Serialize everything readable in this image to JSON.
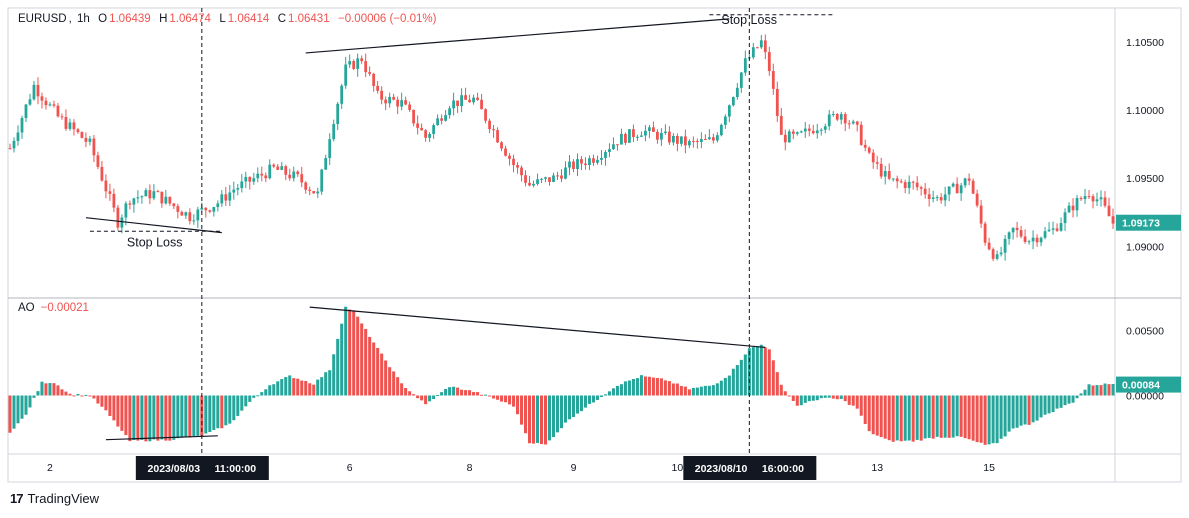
{
  "legend": {
    "symbol": "EURUSD",
    "timeframe": "1h",
    "open_label": "O",
    "open": "1.06439",
    "high_label": "H",
    "high": "1.06474",
    "low_label": "L",
    "low": "1.06414",
    "close_label": "C",
    "close": "1.06431",
    "change": "−0.00006 (−0.01%)"
  },
  "ao_legend": {
    "name": "AO",
    "value": "−0.00021"
  },
  "branding": {
    "logo_mark": "17",
    "name": "TradingView"
  },
  "annotations": {
    "stop_loss_left": "Stop Loss",
    "stop_loss_right": "Stop Loss"
  },
  "colors": {
    "up": "#26a69a",
    "down": "#ef5350",
    "ao_up": "#26a69a",
    "ao_down": "#ef5350",
    "text": "#131722",
    "grid": "#d1d4dc"
  },
  "chart_data": [
    {
      "type": "candlestick",
      "title": "EURUSD, 1h",
      "ylim": [
        1.0862,
        1.1075
      ],
      "y_ticks": [
        "1.10500",
        "1.10000",
        "1.09500",
        "1.09000"
      ],
      "y_tick_values": [
        1.105,
        1.1,
        1.095,
        1.09
      ],
      "last_price": "1.09173",
      "last_price_value": 1.09173,
      "keypoints": [
        [
          0,
          1.0972
        ],
        [
          6,
          1.1018
        ],
        [
          12,
          1.0995
        ],
        [
          20,
          1.0975
        ],
        [
          27,
          1.0918
        ],
        [
          30,
          1.0935
        ],
        [
          36,
          1.0939
        ],
        [
          45,
          1.0922
        ],
        [
          52,
          1.0932
        ],
        [
          56,
          1.0942
        ],
        [
          60,
          1.0948
        ],
        [
          66,
          1.0957
        ],
        [
          72,
          1.095
        ],
        [
          77,
          1.0938
        ],
        [
          80,
          1.0982
        ],
        [
          84,
          1.103
        ],
        [
          88,
          1.1038
        ],
        [
          92,
          1.101
        ],
        [
          98,
          1.1005
        ],
        [
          104,
          1.098
        ],
        [
          110,
          1.1005
        ],
        [
          116,
          1.1008
        ],
        [
          120,
          1.099
        ],
        [
          126,
          1.096
        ],
        [
          130,
          1.0945
        ],
        [
          136,
          1.095
        ],
        [
          140,
          1.0958
        ],
        [
          146,
          1.0965
        ],
        [
          152,
          1.0978
        ],
        [
          158,
          1.0985
        ],
        [
          164,
          1.098
        ],
        [
          170,
          1.0975
        ],
        [
          176,
          1.0978
        ],
        [
          180,
          1.1005
        ],
        [
          184,
          1.1035
        ],
        [
          188,
          1.105
        ],
        [
          190,
          1.103
        ],
        [
          193,
          1.098
        ],
        [
          197,
          1.098
        ],
        [
          203,
          1.099
        ],
        [
          208,
          1.0998
        ],
        [
          212,
          1.0985
        ],
        [
          215,
          1.0965
        ],
        [
          220,
          1.0948
        ],
        [
          226,
          1.0945
        ],
        [
          232,
          1.0935
        ],
        [
          238,
          1.0945
        ],
        [
          240,
          1.095
        ],
        [
          244,
          1.0905
        ],
        [
          247,
          1.089
        ],
        [
          251,
          1.0912
        ],
        [
          255,
          1.0905
        ],
        [
          261,
          1.0912
        ],
        [
          266,
          1.093
        ],
        [
          270,
          1.094
        ],
        [
          273,
          1.0932
        ],
        [
          276,
          1.0917
        ]
      ],
      "series_length": 277
    },
    {
      "type": "histogram",
      "title": "AO",
      "ylim": [
        -0.0045,
        0.0075
      ],
      "y_ticks": [
        "0.00500",
        "0.00000"
      ],
      "y_tick_values": [
        0.005,
        0.0
      ],
      "last_value": "0.00084",
      "last_value_num": 0.00084,
      "keypoints": [
        [
          0,
          -0.0028
        ],
        [
          4,
          -0.0015
        ],
        [
          8,
          0.001
        ],
        [
          11,
          0.001
        ],
        [
          15,
          0.0001
        ],
        [
          20,
          0.0
        ],
        [
          24,
          -0.0012
        ],
        [
          30,
          -0.0035
        ],
        [
          40,
          -0.0034
        ],
        [
          48,
          -0.0031
        ],
        [
          55,
          -0.0022
        ],
        [
          60,
          -0.0005
        ],
        [
          65,
          0.0008
        ],
        [
          70,
          0.0015
        ],
        [
          76,
          0.0009
        ],
        [
          80,
          0.002
        ],
        [
          84,
          0.0068
        ],
        [
          86,
          0.0065
        ],
        [
          92,
          0.0036
        ],
        [
          98,
          0.0009
        ],
        [
          104,
          -0.0007
        ],
        [
          110,
          0.0007
        ],
        [
          116,
          0.0003
        ],
        [
          120,
          -0.0001
        ],
        [
          126,
          -0.0008
        ],
        [
          130,
          -0.0036
        ],
        [
          134,
          -0.0038
        ],
        [
          140,
          -0.0018
        ],
        [
          146,
          -0.0005
        ],
        [
          152,
          0.0008
        ],
        [
          158,
          0.0015
        ],
        [
          164,
          0.0012
        ],
        [
          170,
          0.0005
        ],
        [
          176,
          0.0008
        ],
        [
          180,
          0.0016
        ],
        [
          185,
          0.0036
        ],
        [
          188,
          0.0039
        ],
        [
          190,
          0.0036
        ],
        [
          193,
          0.0008
        ],
        [
          197,
          -0.0008
        ],
        [
          203,
          -0.0002
        ],
        [
          208,
          -0.0003
        ],
        [
          212,
          -0.001
        ],
        [
          215,
          -0.0028
        ],
        [
          220,
          -0.0035
        ],
        [
          226,
          -0.0035
        ],
        [
          232,
          -0.0032
        ],
        [
          238,
          -0.0032
        ],
        [
          244,
          -0.0038
        ],
        [
          247,
          -0.0037
        ],
        [
          251,
          -0.0025
        ],
        [
          255,
          -0.0022
        ],
        [
          261,
          -0.0012
        ],
        [
          266,
          -0.0005
        ],
        [
          270,
          0.0008
        ],
        [
          276,
          0.0009
        ]
      ],
      "series_length": 277
    }
  ],
  "x_axis": {
    "ticks": [
      {
        "label": "2",
        "index": 10
      },
      {
        "label": "6",
        "index": 85
      },
      {
        "label": "8",
        "index": 115
      },
      {
        "label": "9",
        "index": 141
      },
      {
        "label": "10",
        "index": 167
      },
      {
        "label": "13",
        "index": 217
      },
      {
        "label": "15",
        "index": 245
      }
    ],
    "crosshairs": [
      {
        "label": "2023/08/03     11:00:00",
        "index": 48
      },
      {
        "label": "2023/08/10     16:00:00",
        "index": 185
      }
    ]
  },
  "trendlines": {
    "price": [
      {
        "from": [
          19,
          1.0921
        ],
        "to": [
          53,
          1.091
        ]
      },
      {
        "from": [
          74,
          1.1042
        ],
        "to": [
          180,
          1.1067
        ]
      }
    ],
    "ao": [
      {
        "from": [
          24,
          -0.0034
        ],
        "to": [
          52,
          -0.0031
        ]
      },
      {
        "from": [
          75,
          0.0068
        ],
        "to": [
          189,
          0.0037
        ]
      }
    ],
    "stop_loss_left": {
      "from": [
        20,
        1.0911
      ],
      "to": [
        53,
        1.0911
      ]
    },
    "stop_loss_right": {
      "from": [
        175,
        1.107
      ],
      "to": [
        206,
        1.107
      ]
    }
  }
}
